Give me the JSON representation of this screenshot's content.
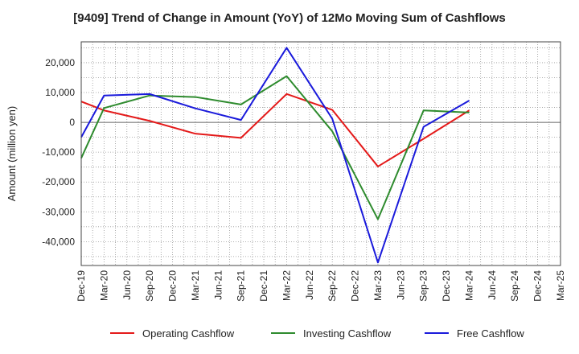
{
  "chart_data": {
    "type": "line",
    "title": "[9409]  Trend of Change in Amount (YoY) of 12Mo Moving Sum of Cashflows",
    "xlabel": "",
    "ylabel": "Amount (million yen)",
    "ylim": [
      -48000,
      27000
    ],
    "yticks": [
      20000,
      10000,
      0,
      -10000,
      -20000,
      -30000,
      -40000
    ],
    "ytick_labels": [
      "20,000",
      "10,000",
      "0",
      "-10,000",
      "-20,000",
      "-30,000",
      "-40,000"
    ],
    "categories": [
      "Dec-19",
      "Mar-20",
      "Jun-20",
      "Sep-20",
      "Dec-20",
      "Mar-21",
      "Jun-21",
      "Sep-21",
      "Dec-21",
      "Mar-22",
      "Jun-22",
      "Sep-22",
      "Dec-22",
      "Mar-23",
      "Jun-23",
      "Sep-23",
      "Dec-23",
      "Mar-24",
      "Jun-24",
      "Sep-24",
      "Dec-24",
      "Mar-25"
    ],
    "grid": true,
    "legend_position": "bottom",
    "series": [
      {
        "name": "Operating Cashflow",
        "color": "#e41a1a",
        "x": [
          "Dec-19",
          "Mar-20",
          "Sep-20",
          "Mar-21",
          "Sep-21",
          "Mar-22",
          "Sep-22",
          "Mar-23",
          "Sep-23",
          "Mar-24"
        ],
        "values": [
          7000,
          4000,
          500,
          -3800,
          -5200,
          9500,
          4200,
          -14800,
          -5500,
          4000
        ]
      },
      {
        "name": "Investing Cashflow",
        "color": "#2e8b2e",
        "x": [
          "Dec-19",
          "Mar-20",
          "Sep-20",
          "Mar-21",
          "Sep-21",
          "Mar-22",
          "Sep-22",
          "Mar-23",
          "Sep-23",
          "Mar-24"
        ],
        "values": [
          -12000,
          4800,
          9000,
          8500,
          6000,
          15500,
          -3000,
          -32500,
          4000,
          3300
        ]
      },
      {
        "name": "Free Cashflow",
        "color": "#1a1adb",
        "x": [
          "Dec-19",
          "Mar-20",
          "Sep-20",
          "Mar-21",
          "Sep-21",
          "Mar-22",
          "Sep-22",
          "Mar-23",
          "Sep-23",
          "Mar-24"
        ],
        "values": [
          -5000,
          9000,
          9500,
          4700,
          800,
          25000,
          1200,
          -47000,
          -1500,
          7300
        ]
      }
    ]
  }
}
